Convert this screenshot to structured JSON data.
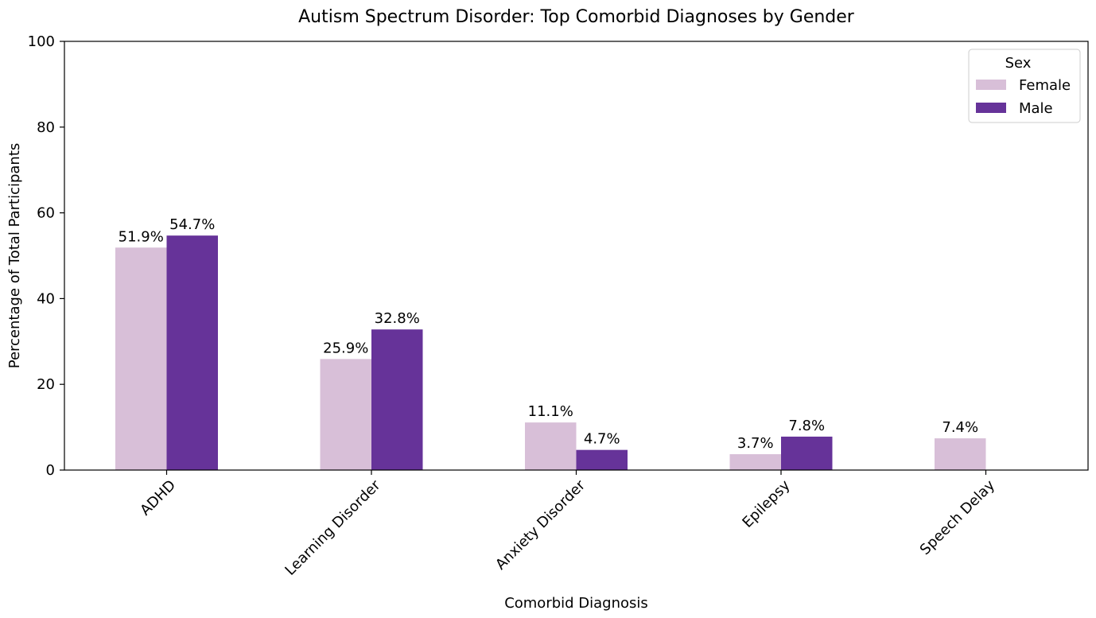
{
  "chart_data": {
    "type": "bar",
    "title": "Autism Spectrum Disorder: Top Comorbid Diagnoses by Gender",
    "xlabel": "Comorbid Diagnosis",
    "ylabel": "Percentage of Total Participants",
    "categories": [
      "ADHD",
      "Learning Disorder",
      "Anxiety Disorder",
      "Epilepsy",
      "Speech Delay"
    ],
    "series": [
      {
        "name": "Female",
        "color": "#d8bfd8",
        "values": [
          51.9,
          25.9,
          11.1,
          3.7,
          7.4
        ],
        "labels": [
          "51.9%",
          "25.9%",
          "11.1%",
          "3.7%",
          "7.4%"
        ]
      },
      {
        "name": "Male",
        "color": "#663399",
        "values": [
          54.7,
          32.8,
          4.7,
          7.8,
          null
        ],
        "labels": [
          "54.7%",
          "32.8%",
          "4.7%",
          "7.8%",
          null
        ]
      }
    ],
    "ylim": [
      0,
      100
    ],
    "yticks": [
      "0",
      "20",
      "40",
      "60",
      "80",
      "100"
    ],
    "legend": {
      "title": "Sex",
      "position": "top-right"
    },
    "grid": false
  }
}
